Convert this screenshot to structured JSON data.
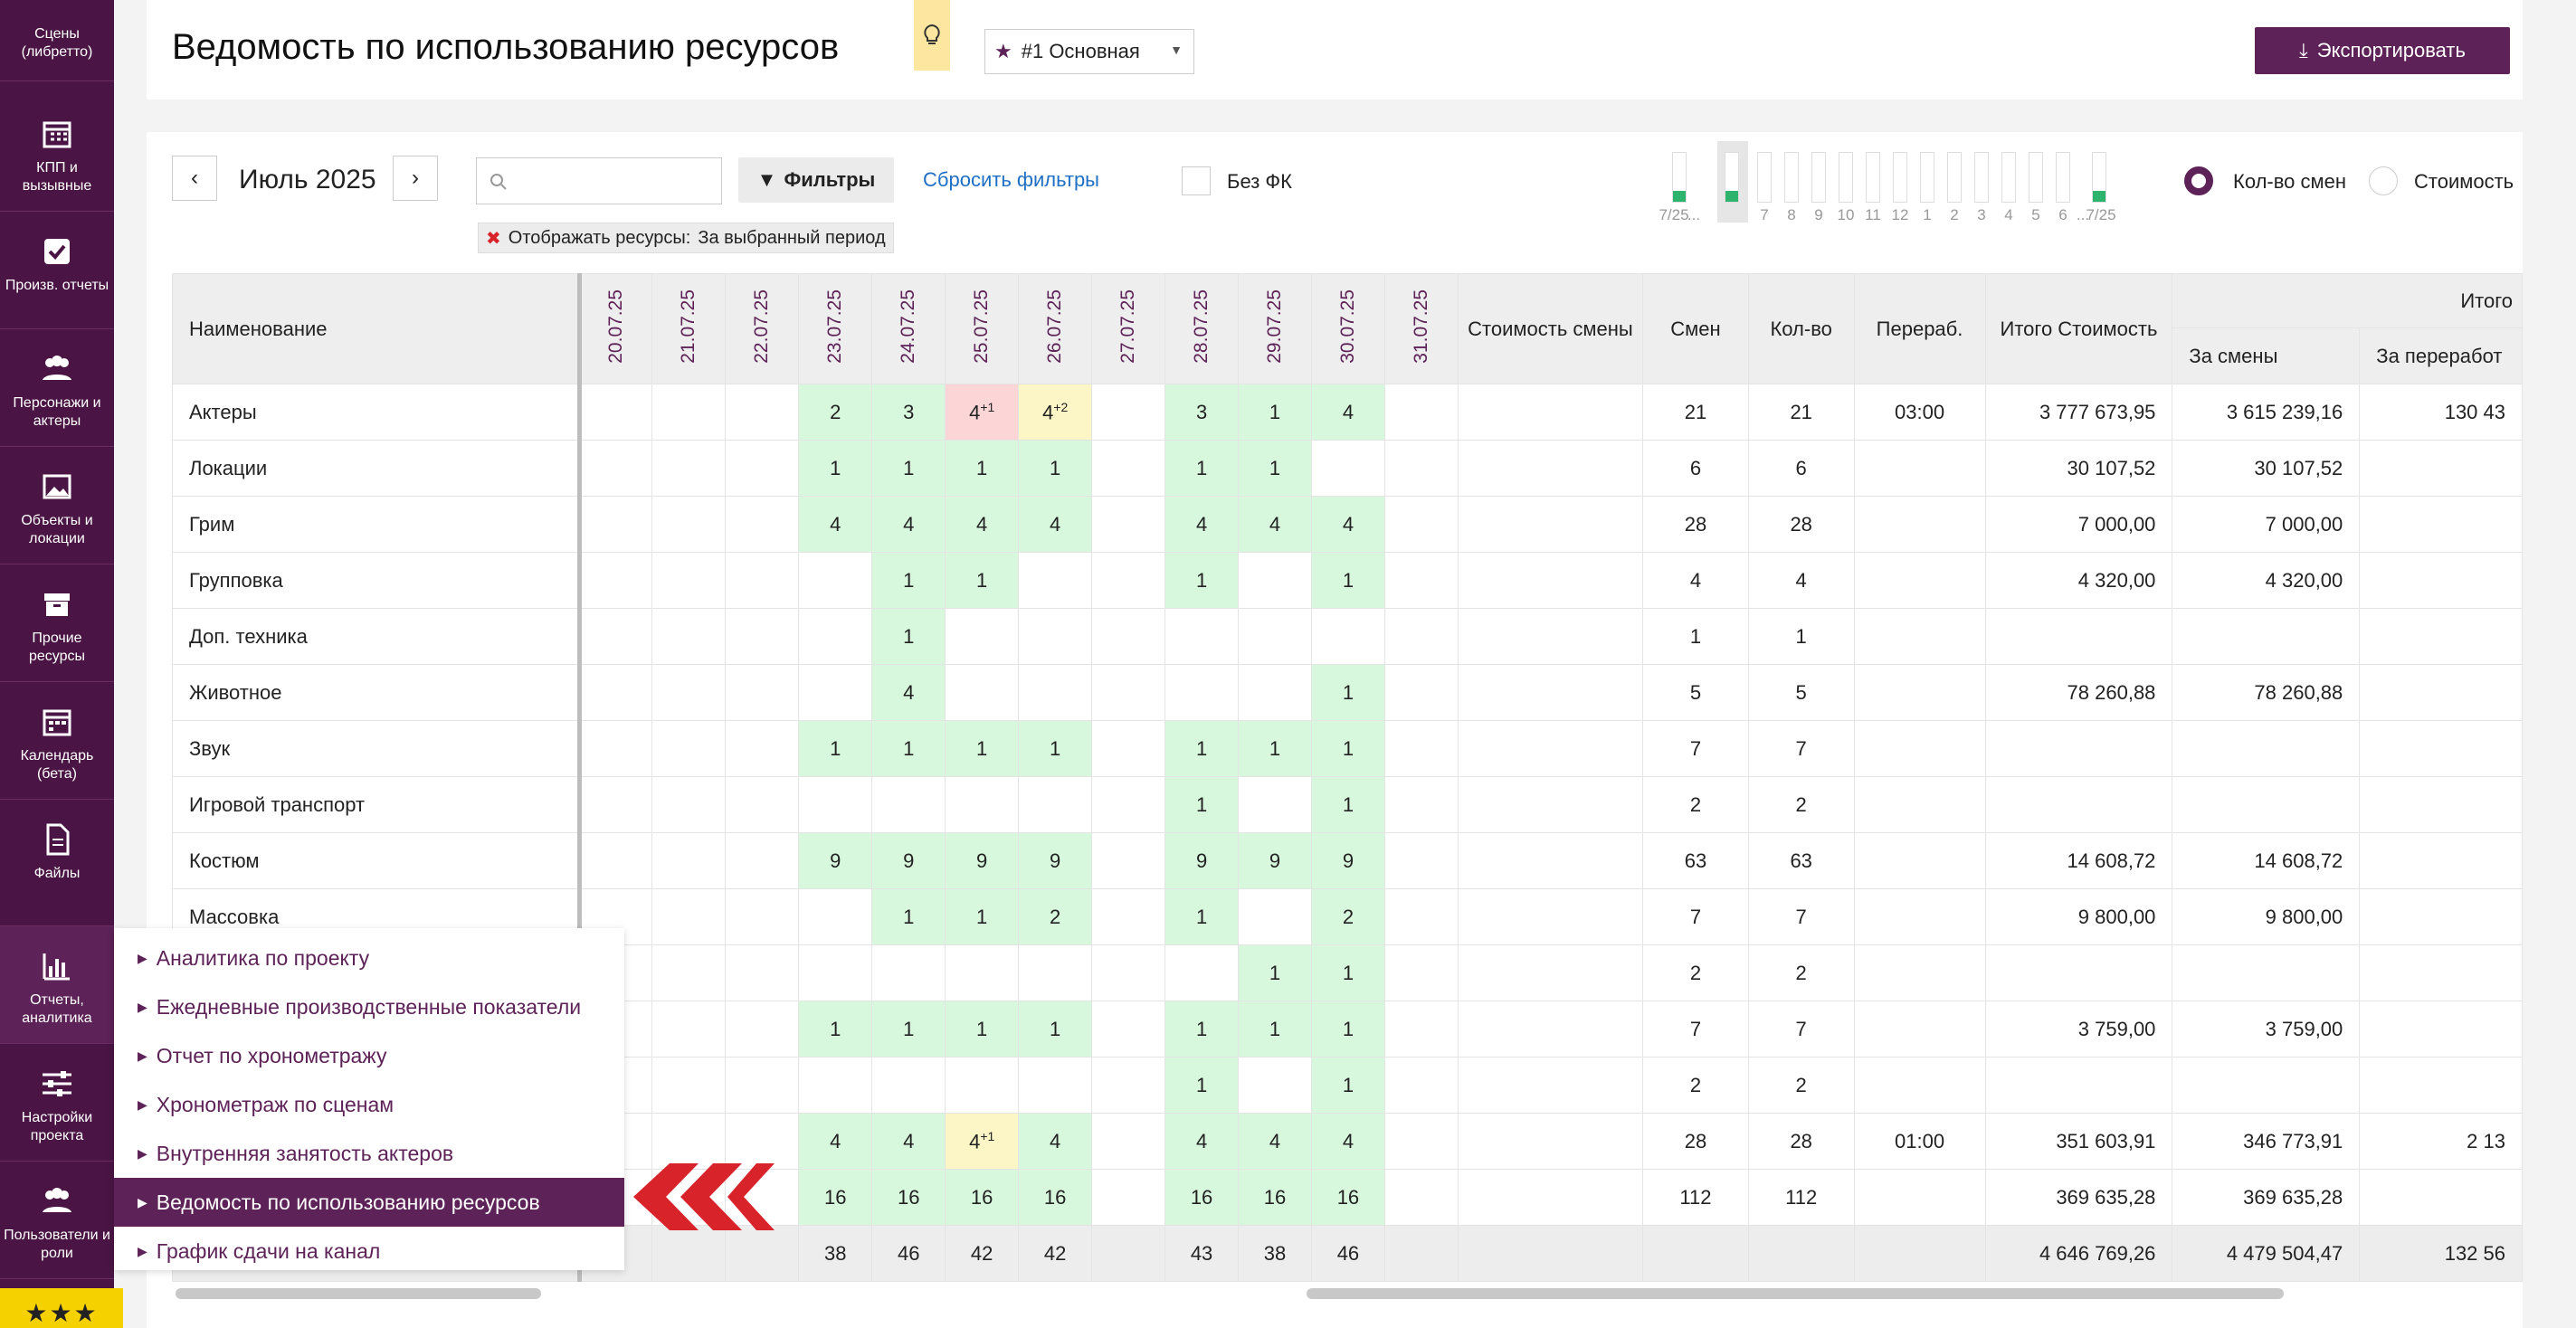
{
  "sidebar": {
    "items": [
      {
        "label": "Сцены\n(либретто)",
        "icon": "scenes-icon",
        "top": 0
      },
      {
        "label": "КПП и\nвызывные",
        "icon": "calendar-grid-icon"
      },
      {
        "label": "Произв. отчеты",
        "icon": "checkbox-icon"
      },
      {
        "label": "Персонажи и\nактеры",
        "icon": "people-icon"
      },
      {
        "label": "Объекты и\nлокации",
        "icon": "image-icon"
      },
      {
        "label": "Прочие\nресурсы",
        "icon": "box-icon"
      },
      {
        "label": "Календарь\n(бета)",
        "icon": "calendar-icon"
      },
      {
        "label": "Файлы",
        "icon": "file-icon"
      },
      {
        "label": "Отчеты,\nаналитика",
        "icon": "bar-chart-icon"
      },
      {
        "label": "Настройки\nпроекта",
        "icon": "sliders-icon"
      },
      {
        "label": "Пользователи и\nроли",
        "icon": "users-icon"
      }
    ]
  },
  "header": {
    "title": "Ведомость по использованию ресурсов",
    "variant": "#1 Основная",
    "export_label": "Экспортировать"
  },
  "toolbar": {
    "month": "Июль 2025",
    "prev": "‹",
    "next": "›",
    "search_placeholder": "",
    "filters_label": "Фильтры",
    "reset_label": "Сбросить фильтры",
    "nofk_label": "Без ФК",
    "chip_label": "Отображать ресурсы:",
    "chip_value": "За выбранный период",
    "radio_shifts": "Кол-во смен",
    "radio_cost": "Стоимость"
  },
  "mini_calendar": {
    "labels": [
      "7/25",
      "...",
      "7",
      "8",
      "9",
      "10",
      "11",
      "12",
      "1",
      "2",
      "3",
      "4",
      "5",
      "6",
      "...",
      "7/25"
    ]
  },
  "table": {
    "name_header": "Наименование",
    "dates": [
      "20.07.25",
      "21.07.25",
      "22.07.25",
      "23.07.25",
      "24.07.25",
      "25.07.25",
      "26.07.25",
      "27.07.25",
      "28.07.25",
      "29.07.25",
      "30.07.25",
      "31.07.25"
    ],
    "col_shift_cost": "Стоимость смены",
    "col_shifts": "Смен",
    "col_qty": "Кол-во",
    "col_overtime": "Перераб.",
    "col_total_cost": "Итого Стоимость",
    "col_total_group": "Итого",
    "col_for_shifts": "За смены",
    "col_for_overtime": "За переработ",
    "rows": [
      {
        "name": "Актеры",
        "cells": [
          "",
          "",
          "",
          "2",
          "3",
          "4",
          "4",
          "",
          "3",
          "1",
          "4",
          ""
        ],
        "sup": [
          "",
          "",
          "",
          "",
          "",
          "+1",
          "+2",
          "",
          "",
          "",
          "",
          ""
        ],
        "shifts": "21",
        "qty": "21",
        "over": "03:00",
        "total": "3 777 673,95",
        "for_shifts": "3 615 239,16",
        "for_over": "130 43"
      },
      {
        "name": "Локации",
        "cells": [
          "",
          "",
          "",
          "1",
          "1",
          "1",
          "1",
          "",
          "1",
          "1",
          "",
          ""
        ],
        "shifts": "6",
        "qty": "6",
        "over": "",
        "total": "30 107,52",
        "for_shifts": "30 107,52",
        "for_over": ""
      },
      {
        "name": "Грим",
        "cells": [
          "",
          "",
          "",
          "4",
          "4",
          "4",
          "4",
          "",
          "4",
          "4",
          "4",
          ""
        ],
        "shifts": "28",
        "qty": "28",
        "over": "",
        "total": "7 000,00",
        "for_shifts": "7 000,00",
        "for_over": ""
      },
      {
        "name": "Групповка",
        "cells": [
          "",
          "",
          "",
          "",
          "1",
          "1",
          "",
          "",
          "1",
          "",
          "1",
          ""
        ],
        "shifts": "4",
        "qty": "4",
        "over": "",
        "total": "4 320,00",
        "for_shifts": "4 320,00",
        "for_over": ""
      },
      {
        "name": "Доп. техника",
        "cells": [
          "",
          "",
          "",
          "",
          "1",
          "",
          "",
          "",
          "",
          "",
          "",
          ""
        ],
        "shifts": "1",
        "qty": "1",
        "over": "",
        "total": "",
        "for_shifts": "",
        "for_over": ""
      },
      {
        "name": "Животное",
        "cells": [
          "",
          "",
          "",
          "",
          "4",
          "",
          "",
          "",
          "",
          "",
          "1",
          ""
        ],
        "shifts": "5",
        "qty": "5",
        "over": "",
        "total": "78 260,88",
        "for_shifts": "78 260,88",
        "for_over": ""
      },
      {
        "name": "Звук",
        "cells": [
          "",
          "",
          "",
          "1",
          "1",
          "1",
          "1",
          "",
          "1",
          "1",
          "1",
          ""
        ],
        "shifts": "7",
        "qty": "7",
        "over": "",
        "total": "",
        "for_shifts": "",
        "for_over": ""
      },
      {
        "name": "Игровой транспорт",
        "cells": [
          "",
          "",
          "",
          "",
          "",
          "",
          "",
          "",
          "1",
          "",
          "1",
          ""
        ],
        "shifts": "2",
        "qty": "2",
        "over": "",
        "total": "",
        "for_shifts": "",
        "for_over": ""
      },
      {
        "name": "Костюм",
        "cells": [
          "",
          "",
          "",
          "9",
          "9",
          "9",
          "9",
          "",
          "9",
          "9",
          "9",
          ""
        ],
        "shifts": "63",
        "qty": "63",
        "over": "",
        "total": "14 608,72",
        "for_shifts": "14 608,72",
        "for_over": ""
      },
      {
        "name": "Массовка",
        "cells": [
          "",
          "",
          "",
          "",
          "1",
          "1",
          "2",
          "",
          "1",
          "",
          "2",
          ""
        ],
        "shifts": "7",
        "qty": "7",
        "over": "",
        "total": "9 800,00",
        "for_shifts": "9 800,00",
        "for_over": ""
      },
      {
        "name": "",
        "cells": [
          "",
          "",
          "",
          "",
          "",
          "",
          "",
          "",
          "",
          "1",
          "1",
          ""
        ],
        "shifts": "2",
        "qty": "2",
        "over": "",
        "total": "",
        "for_shifts": "",
        "for_over": ""
      },
      {
        "name": "",
        "cells": [
          "",
          "",
          "",
          "1",
          "1",
          "1",
          "1",
          "",
          "1",
          "1",
          "1",
          ""
        ],
        "shifts": "7",
        "qty": "7",
        "over": "",
        "total": "3 759,00",
        "for_shifts": "3 759,00",
        "for_over": ""
      },
      {
        "name": "",
        "cells": [
          "",
          "",
          "",
          "",
          "",
          "",
          "",
          "",
          "1",
          "",
          "1",
          ""
        ],
        "shifts": "2",
        "qty": "2",
        "over": "",
        "total": "",
        "for_shifts": "",
        "for_over": ""
      },
      {
        "name": "",
        "cells": [
          "",
          "",
          "",
          "4",
          "4",
          "4",
          "4",
          "",
          "4",
          "4",
          "4",
          ""
        ],
        "sup": [
          "",
          "",
          "",
          "",
          "",
          "+1",
          "",
          "",
          "",
          "",
          "",
          ""
        ],
        "shifts": "28",
        "qty": "28",
        "over": "01:00",
        "total": "351 603,91",
        "for_shifts": "346 773,91",
        "for_over": "2 13"
      },
      {
        "name": "",
        "cells": [
          "",
          "",
          "",
          "16",
          "16",
          "16",
          "16",
          "",
          "16",
          "16",
          "16",
          ""
        ],
        "shifts": "112",
        "qty": "112",
        "over": "",
        "total": "369 635,28",
        "for_shifts": "369 635,28",
        "for_over": ""
      }
    ],
    "totals": {
      "cells": [
        "",
        "",
        "",
        "38",
        "46",
        "42",
        "42",
        "",
        "43",
        "38",
        "46",
        ""
      ],
      "total": "4 646 769,26",
      "for_shifts": "4 479 504,47",
      "for_over": "132 56"
    }
  },
  "submenu": {
    "items": [
      "Аналитика по проекту",
      "Ежедневные производственные показатели",
      "Отчет по хронометражу",
      "Хронометраж по сценам",
      "Внутренняя занятость актеров",
      "Ведомость по использованию ресурсов",
      "График сдачи на канал"
    ],
    "active_index": 5
  },
  "logo_text": "★★★",
  "colors": {
    "brand": "#5d2257",
    "sidebar": "#4a1544",
    "green": "#d8f8dd",
    "red": "#fcd6d6",
    "yellow": "#fcf6c6",
    "accent_red": "#d8232a"
  }
}
